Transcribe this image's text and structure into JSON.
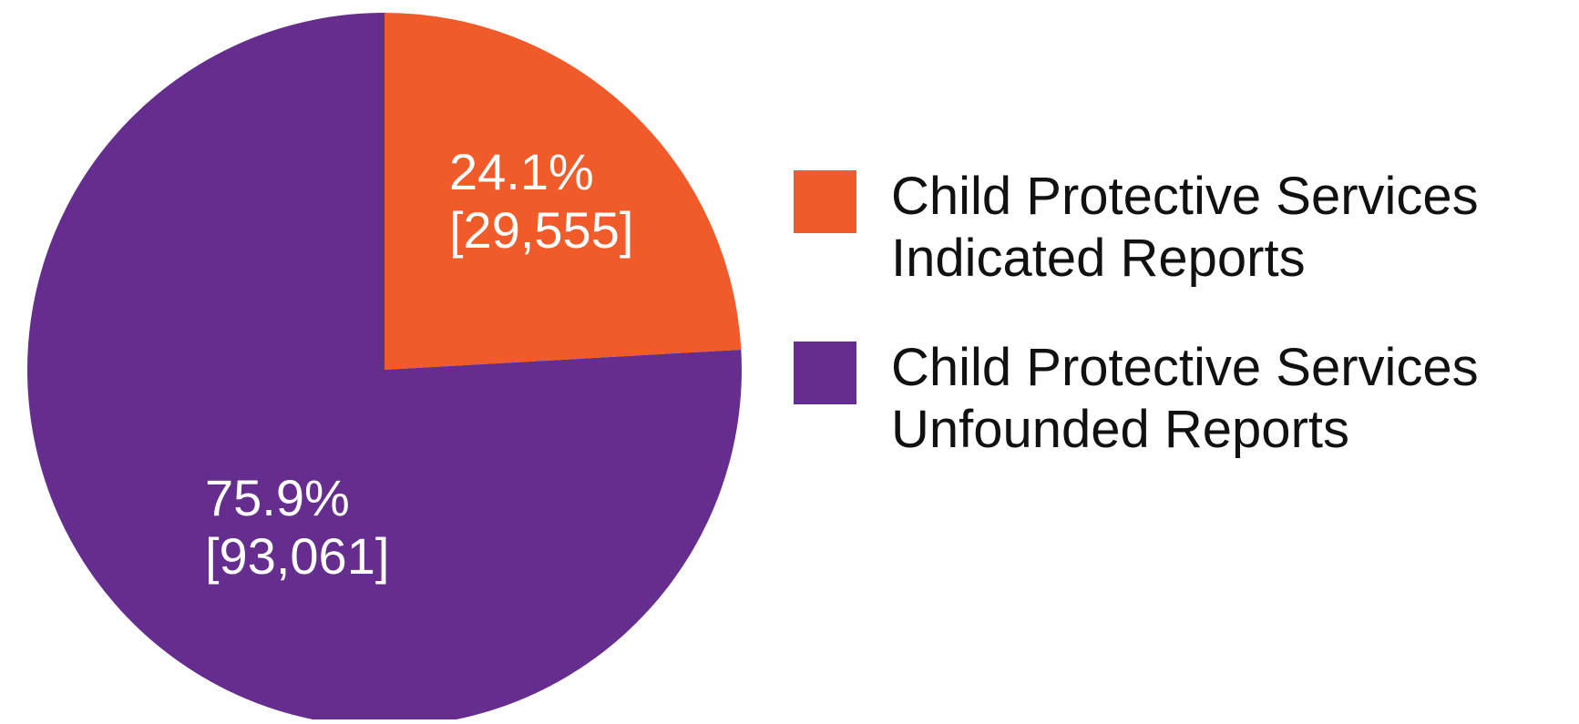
{
  "chart_data": {
    "type": "pie",
    "start_angle_deg": 0,
    "direction": "clockwise",
    "slices": [
      {
        "label_lines": [
          "Child Protective Services",
          "Indicated Reports"
        ],
        "value": 29555,
        "percent_label": "24.1%",
        "count_label": "[29,555]",
        "color": "#F15A29"
      },
      {
        "label_lines": [
          "Child Protective Services",
          "Unfounded Reports"
        ],
        "value": 93061,
        "percent_label": "75.9%",
        "count_label": "[93,061]",
        "color": "#652D8E"
      }
    ],
    "legend_position": "right"
  }
}
